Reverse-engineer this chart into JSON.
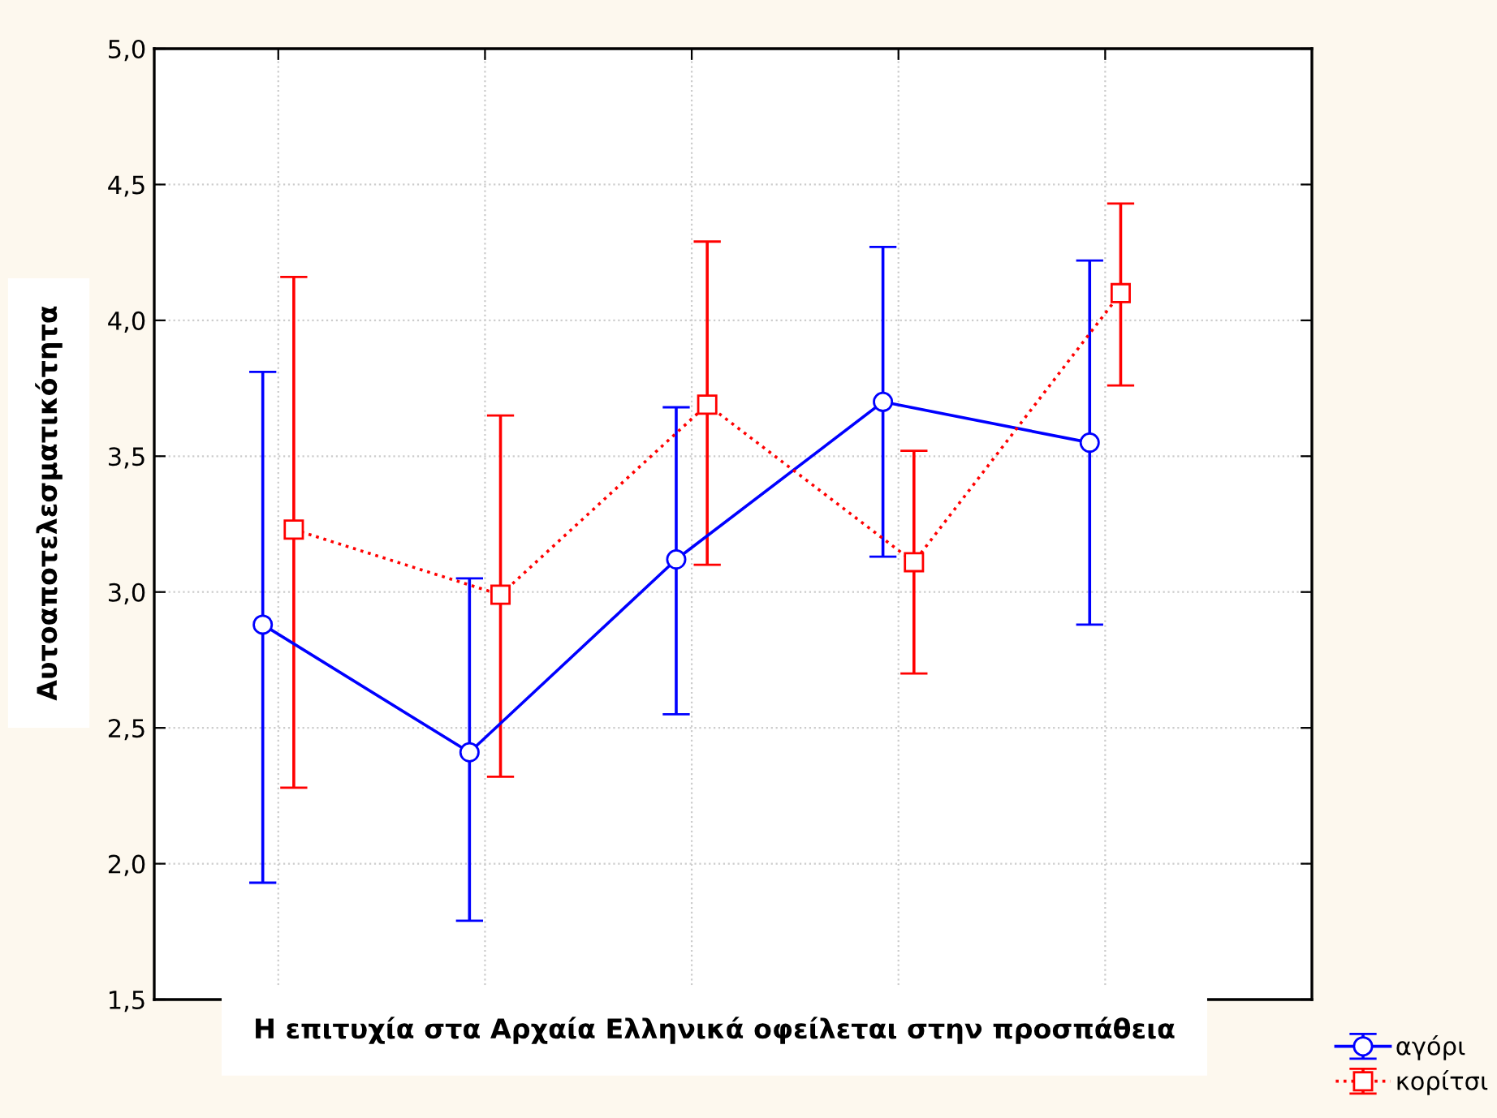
{
  "chart_data": {
    "type": "line",
    "xlabel": "Η επιτυχία στα Αρχαία Ελληνικά οφείλεται στην προσπάθεια",
    "ylabel": "Αυτοαποτελεσματικότητα",
    "categories": [
      null,
      null,
      null,
      null,
      null
    ],
    "series": [
      {
        "name": "αγόρι",
        "color": "#0000ff",
        "marker": "circle",
        "line_style": "solid",
        "values": [
          2.88,
          2.41,
          3.12,
          3.7,
          3.55
        ],
        "errors": [
          [
            1.93,
            3.81
          ],
          [
            1.79,
            3.05
          ],
          [
            2.55,
            3.68
          ],
          [
            3.13,
            4.27
          ],
          [
            2.88,
            4.22
          ]
        ]
      },
      {
        "name": "κορίτσι",
        "color": "#ff0000",
        "marker": "square",
        "line_style": "dotted",
        "values": [
          3.23,
          2.99,
          3.69,
          3.11,
          4.1
        ],
        "errors": [
          [
            2.28,
            4.16
          ],
          [
            2.32,
            3.65
          ],
          [
            3.1,
            4.29
          ],
          [
            2.7,
            3.52
          ],
          [
            3.76,
            4.43
          ]
        ]
      }
    ],
    "ylim": [
      1.5,
      5.0
    ],
    "yticks": [
      {
        "value": 1.5,
        "label": "1,5"
      },
      {
        "value": 2.0,
        "label": "2,0"
      },
      {
        "value": 2.5,
        "label": "2,5"
      },
      {
        "value": 3.0,
        "label": "3,0"
      },
      {
        "value": 3.5,
        "label": "3,5"
      },
      {
        "value": 4.0,
        "label": "4,0"
      },
      {
        "value": 4.5,
        "label": "4,5"
      },
      {
        "value": 5.0,
        "label": "5,0"
      }
    ],
    "tick_labels": "y",
    "grid": true,
    "legend": "bottom right"
  }
}
